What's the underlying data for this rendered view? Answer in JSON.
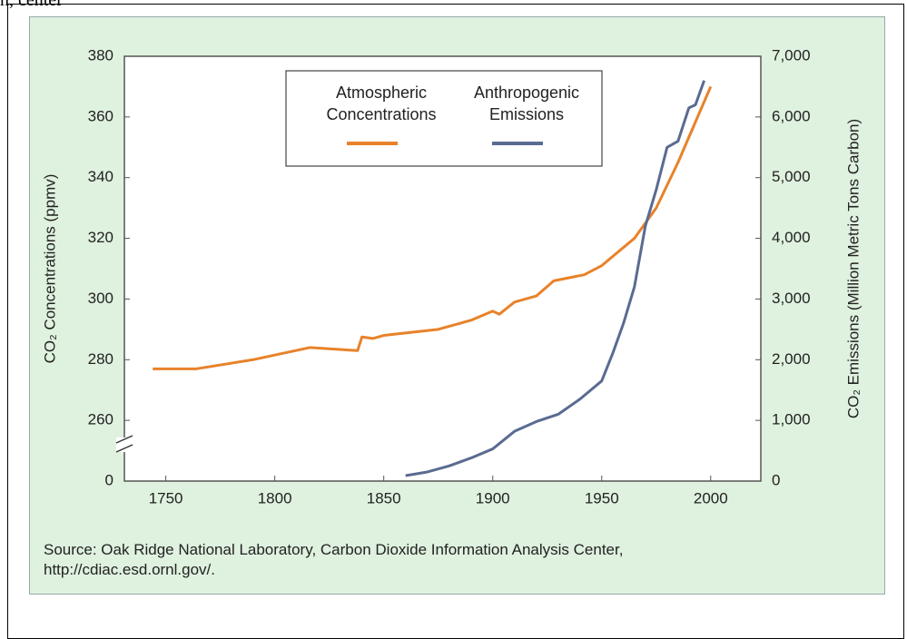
{
  "page_text": "n, center",
  "chart_data": {
    "type": "line",
    "ylabel": "CO₂ Concentrations (ppmv)",
    "y2label": "CO₂ Emissions (Million Metric Tons Carbon)",
    "xlim": [
      1731,
      2023
    ],
    "xticks": [
      1750,
      1800,
      1850,
      1900,
      1950,
      2000
    ],
    "ylim": [
      240,
      380
    ],
    "yticks": [
      {
        "value": 240,
        "label": "0"
      },
      260,
      280,
      300,
      320,
      340,
      360,
      380
    ],
    "y2lim": [
      0,
      7000
    ],
    "y2ticks": [
      {
        "value": 0,
        "label": "0"
      },
      {
        "value": 1000,
        "label": "1,000"
      },
      {
        "value": 2000,
        "label": "2,000"
      },
      {
        "value": 3000,
        "label": "3,000"
      },
      {
        "value": 4000,
        "label": "4,000"
      },
      {
        "value": 5000,
        "label": "5,000"
      },
      {
        "value": 6000,
        "label": "6,000"
      },
      {
        "value": 7000,
        "label": "7,000"
      }
    ],
    "legend": "top",
    "series": [
      {
        "name": "Atmospheric Concentrations",
        "color": "#e8822a",
        "x": [
          1744,
          1764,
          1790,
          1816,
          1838,
          1840,
          1845,
          1850,
          1875,
          1890,
          1900,
          1903,
          1910,
          1920,
          1928,
          1942,
          1950,
          1965,
          1975,
          1985,
          2000
        ],
        "values": [
          277,
          277,
          280,
          284,
          283,
          287.5,
          287,
          288,
          290,
          293,
          296,
          295,
          299,
          301,
          306,
          308,
          311,
          320,
          330,
          345,
          370
        ]
      },
      {
        "name": "Anthropogenic Emissions",
        "color": "#5a6b91",
        "axis": "y2",
        "x": [
          1860,
          1870,
          1880,
          1890,
          1900,
          1910,
          1920,
          1930,
          1940,
          1950,
          1955,
          1960,
          1965,
          1970,
          1975,
          1980,
          1985,
          1990,
          1993,
          1997
        ],
        "values": [
          90,
          150,
          250,
          380,
          530,
          820,
          980,
          1100,
          1350,
          1650,
          2100,
          2600,
          3200,
          4200,
          4800,
          5500,
          5600,
          6150,
          6200,
          6600
        ]
      }
    ],
    "source": [
      "Source: Oak Ridge National Laboratory, Carbon Dioxide Information Analysis Center,",
      "http://cdiac.esd.ornl.gov/."
    ]
  }
}
